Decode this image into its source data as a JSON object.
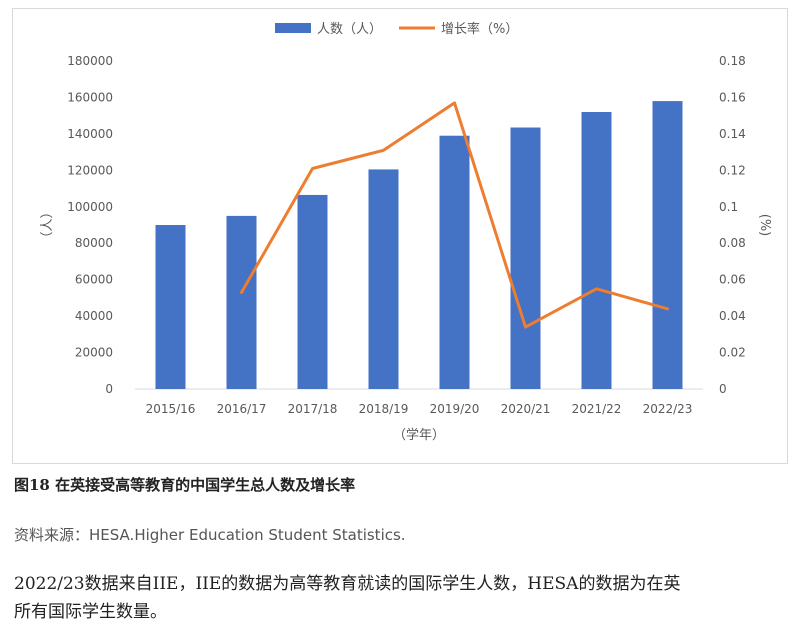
{
  "chart_data": {
    "type": "bar",
    "categories": [
      "2015/16",
      "2016/17",
      "2017/18",
      "2018/19",
      "2019/20",
      "2020/21",
      "2021/22",
      "2022/23"
    ],
    "series": [
      {
        "name": "人数（人）",
        "kind": "bar",
        "axis": "left",
        "color": "#4472C4",
        "values": [
          90000,
          95000,
          106500,
          120500,
          139000,
          143500,
          152000,
          158000
        ]
      },
      {
        "name": "增长率（%）",
        "kind": "line",
        "axis": "right",
        "color": "#ED7D31",
        "values": [
          null,
          0.053,
          0.121,
          0.131,
          0.157,
          0.034,
          0.055,
          0.044
        ]
      }
    ],
    "left_axis": {
      "ticks": [
        0,
        20000,
        40000,
        60000,
        80000,
        100000,
        120000,
        140000,
        160000,
        180000
      ],
      "ylim": [
        0,
        180000
      ],
      "label": "（人）"
    },
    "right_axis": {
      "ticks": [
        "0",
        "0.02",
        "0.04",
        "0.06",
        "0.08",
        "0.1",
        "0.12",
        "0.14",
        "0.16",
        "0.18"
      ],
      "ylim": [
        0,
        0.18
      ],
      "label": "(%)"
    },
    "xlabel": "（学年）",
    "legend_position": "top",
    "grid": false
  },
  "caption": "图18 在英接受高等教育的中国学生总人数及增长率",
  "source": "资料来源：HESA.Higher Education Student Statistics.",
  "note_line1": "2022/23数据来自IIE，IIE的数据为高等教育就读的国际学生人数，HESA的数据为在英",
  "note_line2": "所有国际学生数量。"
}
